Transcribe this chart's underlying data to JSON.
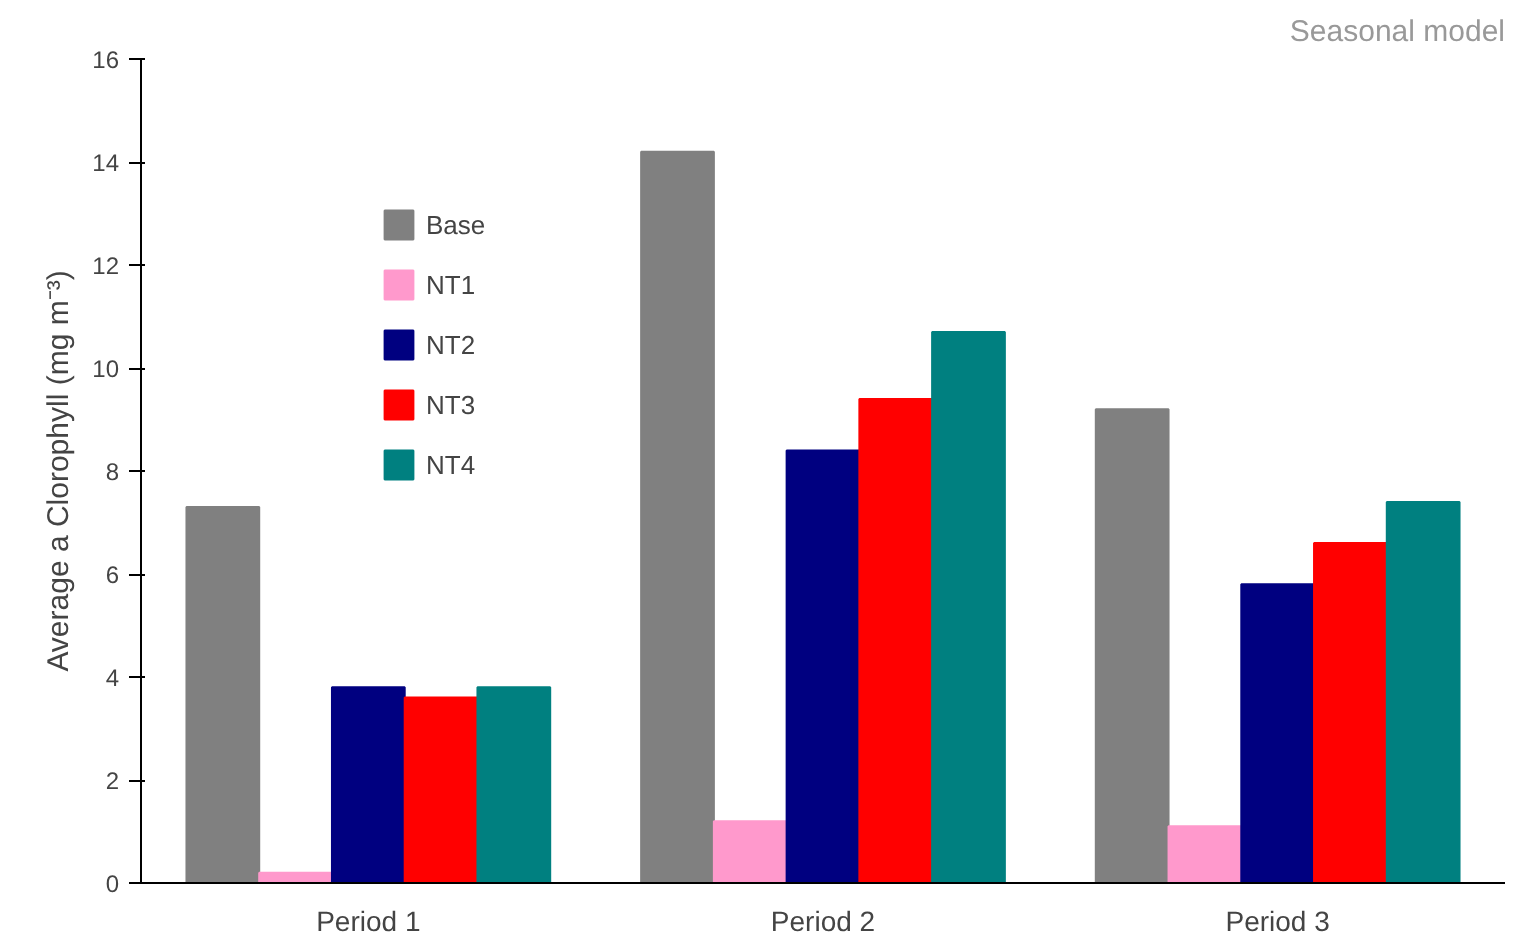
{
  "chart_data": {
    "type": "bar",
    "title": "Seasonal model",
    "ylabel": "Average a Clorophyll (mg m⁻³)",
    "categories": [
      "Period 1",
      "Period 2",
      "Period 3"
    ],
    "series": [
      {
        "name": "Base",
        "color": "#808080",
        "values": [
          7.3,
          14.2,
          9.2
        ]
      },
      {
        "name": "NT1",
        "color": "#ff99cc",
        "values": [
          0.2,
          1.2,
          1.1
        ]
      },
      {
        "name": "NT2",
        "color": "#000080",
        "values": [
          3.8,
          8.4,
          5.8
        ]
      },
      {
        "name": "NT3",
        "color": "#ff0000",
        "values": [
          3.6,
          9.4,
          6.6
        ]
      },
      {
        "name": "NT4",
        "color": "#008080",
        "values": [
          3.8,
          10.7,
          7.4
        ]
      }
    ],
    "ylim": [
      0,
      16
    ],
    "yticks": [
      0,
      2,
      4,
      6,
      8,
      10,
      12,
      14,
      16
    ],
    "grid": false,
    "legend": "top left"
  }
}
